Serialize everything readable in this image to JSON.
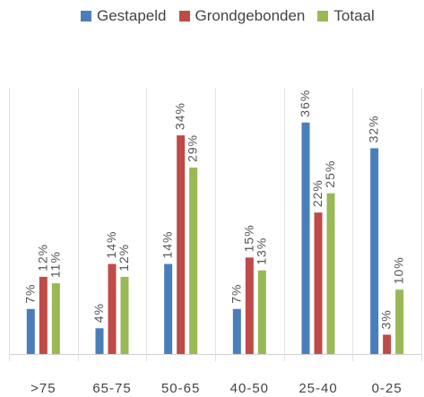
{
  "chart_data": {
    "type": "bar",
    "categories": [
      ">75",
      "65-75",
      "50-65",
      "40-50",
      "25-40",
      "0-25"
    ],
    "series": [
      {
        "name": "Gestapeld",
        "color": "#4a7ebb",
        "values": [
          7,
          4,
          14,
          7,
          36,
          32
        ]
      },
      {
        "name": "Grondgebonden",
        "color": "#be4b48",
        "values": [
          12,
          14,
          34,
          15,
          22,
          3
        ]
      },
      {
        "name": "Totaal",
        "color": "#98b954",
        "values": [
          11,
          12,
          29,
          13,
          25,
          10
        ]
      }
    ],
    "data_labels": [
      [
        "7%",
        "12%",
        "11%"
      ],
      [
        "4%",
        "14%",
        "12%"
      ],
      [
        "14%",
        "34%",
        "29%"
      ],
      [
        "7%",
        "15%",
        "13%"
      ],
      [
        "36%",
        "22%",
        "25%"
      ],
      [
        "32%",
        "3%",
        "10%"
      ]
    ],
    "title": "",
    "xlabel": "",
    "ylabel": "",
    "ylim": [
      0,
      40
    ],
    "grid": false,
    "legend_position": "top",
    "category_separators": true
  }
}
